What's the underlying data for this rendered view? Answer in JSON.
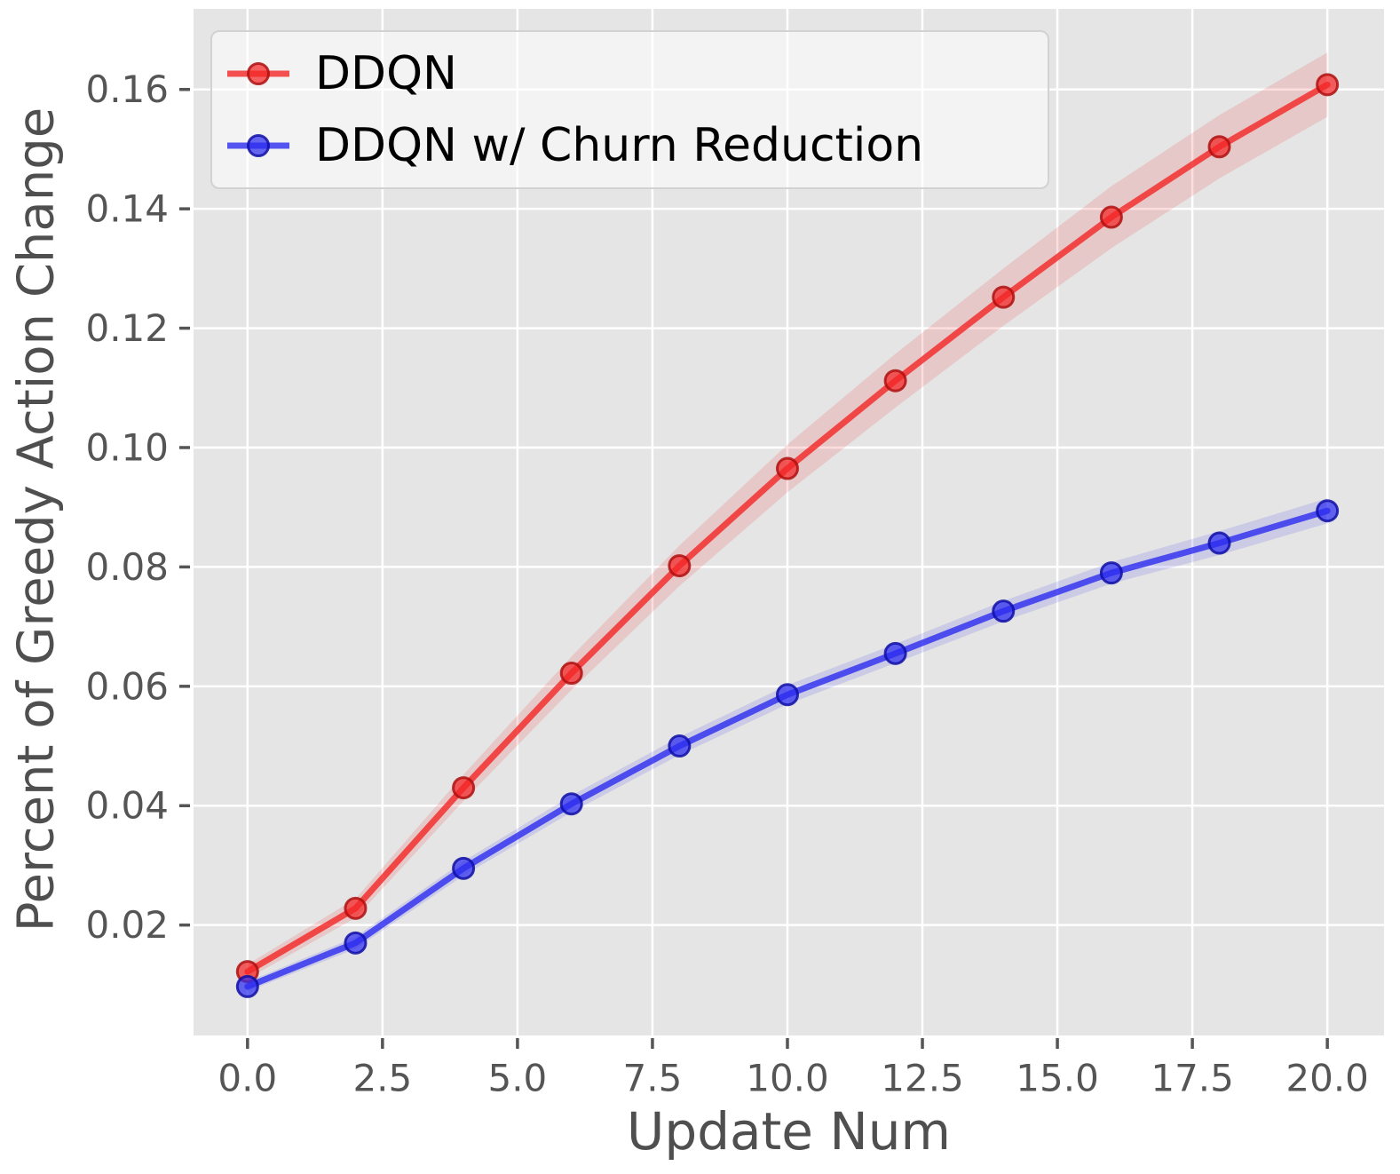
{
  "figure": {
    "background": "#ffffff",
    "plot_background": "#e5e5e5",
    "grid_color": "#ffffff",
    "tick_color": "#555555",
    "axis_label_color": "#4f4f4f",
    "legend_text_color": "#000000"
  },
  "chart_data": {
    "type": "line",
    "title": "",
    "xlabel": "Update Num",
    "ylabel": "Percent of Greedy Action Change",
    "grid": true,
    "legend_position": "upper left",
    "marker": "o",
    "x": [
      0,
      2,
      4,
      6,
      8,
      10,
      12,
      14,
      16,
      18,
      20
    ],
    "series": [
      {
        "name": "DDQN",
        "color": "#f42525",
        "edge_color": "#ae1010",
        "band_color": "rgba(240,70,70,0.18)",
        "values": [
          0.0122,
          0.0228,
          0.043,
          0.0622,
          0.0802,
          0.0965,
          0.1112,
          0.1252,
          0.1386,
          0.1504,
          0.1608
        ],
        "band_half_width": [
          0.0012,
          0.0016,
          0.0022,
          0.0028,
          0.0034,
          0.004,
          0.0045,
          0.0048,
          0.0052,
          0.0053,
          0.0054
        ]
      },
      {
        "name": "DDQN w/ Churn Reduction",
        "color": "#2c2cf0",
        "edge_color": "#0f0fa6",
        "band_color": "rgba(90,90,240,0.18)",
        "values": [
          0.0097,
          0.017,
          0.0295,
          0.0403,
          0.05,
          0.0586,
          0.0655,
          0.0726,
          0.079,
          0.084,
          0.0894
        ],
        "band_half_width": [
          0.0008,
          0.001,
          0.0012,
          0.0014,
          0.0015,
          0.0016,
          0.0016,
          0.0017,
          0.0018,
          0.002,
          0.0021
        ]
      }
    ],
    "xlim": [
      -1.0,
      21.05
    ],
    "ylim": [
      0.0015,
      0.1735
    ],
    "x_ticks": [
      0.0,
      2.5,
      5.0,
      7.5,
      10.0,
      12.5,
      15.0,
      17.5,
      20.0
    ],
    "x_tick_labels": [
      "0.0",
      "2.5",
      "5.0",
      "7.5",
      "10.0",
      "12.5",
      "15.0",
      "17.5",
      "20.0"
    ],
    "y_ticks": [
      0.02,
      0.04,
      0.06,
      0.08,
      0.1,
      0.12,
      0.14,
      0.16
    ],
    "y_tick_labels": [
      "0.02",
      "0.04",
      "0.06",
      "0.08",
      "0.10",
      "0.12",
      "0.14",
      "0.16"
    ]
  }
}
